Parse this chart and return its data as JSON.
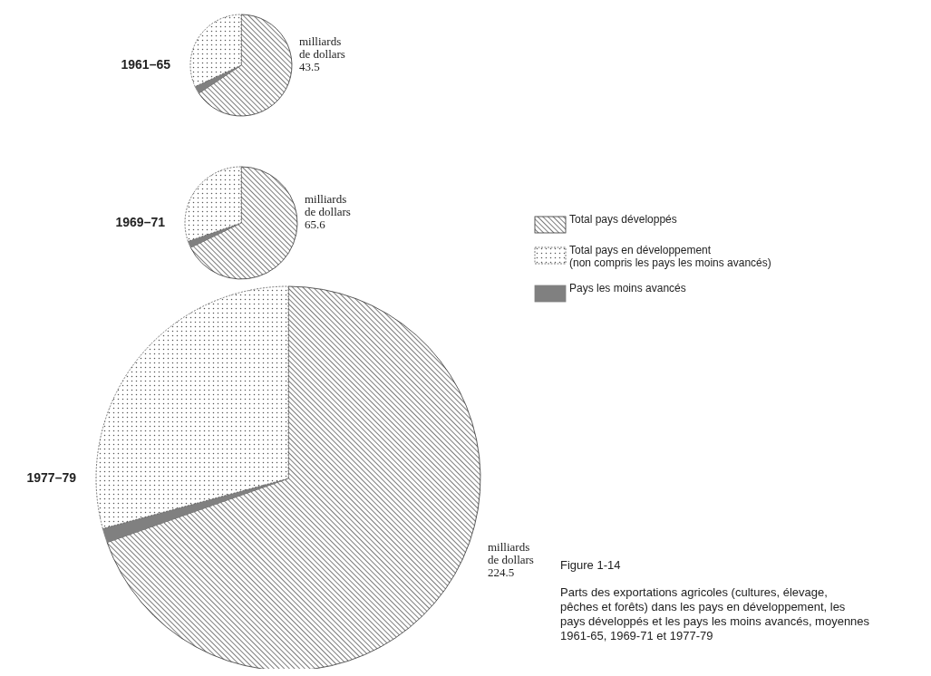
{
  "chart_data": [
    {
      "type": "pie",
      "title": "1961–65",
      "categories": [
        "Total pays développés",
        "Pays les moins avancés",
        "Total pays en développement\n(non compris les pays les moins avancés)"
      ],
      "values": [
        65.7,
        2.4,
        31.9
      ],
      "colors": [
        "#333333",
        "#808080",
        "#555555"
      ],
      "legend": "right",
      "annotations": [
        "milliards\nde dollars\n43.5"
      ]
    },
    {
      "type": "pie",
      "title": "1969–71",
      "categories": [
        null,
        null,
        null
      ],
      "values": [
        67.8,
        1.9,
        30.3
      ],
      "colors": [
        "#333333",
        "#808080",
        "#555555"
      ],
      "annotations": [
        "milliards\nde dollars\n65.6"
      ]
    },
    {
      "type": "pie",
      "title": "1977–79",
      "categories": [
        null,
        null,
        null
      ],
      "values": [
        69.6,
        1.2,
        29.2
      ],
      "colors": [
        "#333333",
        "#808080",
        "#555555"
      ],
      "annotations": [
        "milliards\nde dollars\n224.5",
        "Figure 1-14",
        "Parts des exportations agricoles (cultures, élevage, pêches et forêts) dans les pays en développement, les pays développés et les pays les moins avancés, moyennes 1961-65, 1969-71 et 1977-79"
      ]
    }
  ]
}
